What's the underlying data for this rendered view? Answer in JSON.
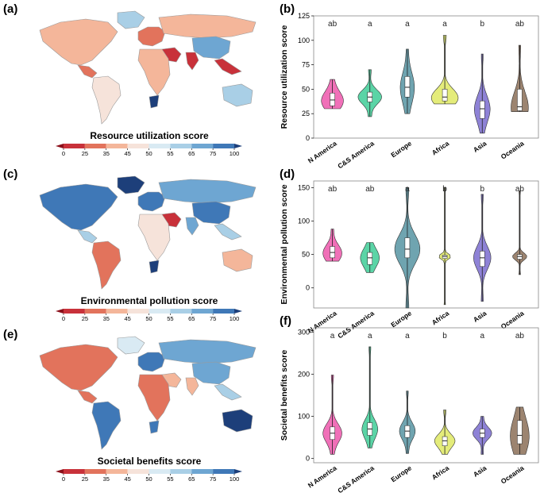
{
  "colors": {
    "scale": [
      "#8b0f1a",
      "#c8313a",
      "#e2735c",
      "#f4b69a",
      "#f6e3da",
      "#d9eaf3",
      "#a9cfe6",
      "#6ea6d2",
      "#3f78b7",
      "#1d3f7a"
    ],
    "groups": {
      "N America": "#f070b8",
      "C&S America": "#5bd4a6",
      "Europe": "#6fa4b0",
      "Africa": "#e4ec7a",
      "Asia": "#8e82d6",
      "Oceania": "#9c8470"
    }
  },
  "maps": [
    {
      "letter": "(a)",
      "title": "Resource utilization score",
      "colorbar_ticks": [
        "0",
        "25",
        "35",
        "45",
        "50",
        "55",
        "65",
        "75",
        "100"
      ],
      "regions": {
        "na": 3,
        "ca": 2,
        "sa": 4,
        "gr": 6,
        "eu": 2,
        "ru": 3,
        "af": 3,
        "me": 1,
        "in": 1,
        "ch": 7,
        "sea": 1,
        "au": 6,
        "saf": 9
      }
    },
    {
      "letter": "(c)",
      "title": "Environmental pollution score",
      "colorbar_ticks": [
        "0",
        "25",
        "35",
        "45",
        "50",
        "55",
        "65",
        "75",
        "100"
      ],
      "regions": {
        "na": 8,
        "ca": 6,
        "sa": 2,
        "gr": 9,
        "eu": 8,
        "ru": 7,
        "af": 4,
        "me": 1,
        "in": 7,
        "ch": 8,
        "sea": 6,
        "au": 3,
        "saf": 9
      }
    },
    {
      "letter": "(e)",
      "title": "Societal benefits score",
      "colorbar_ticks": [
        "0",
        "25",
        "35",
        "45",
        "50",
        "55",
        "65",
        "75",
        "100"
      ],
      "regions": {
        "na": 2,
        "ca": 2,
        "sa": 8,
        "gr": 5,
        "eu": 8,
        "ru": 7,
        "af": 2,
        "me": 3,
        "in": 3,
        "ch": 7,
        "sea": 6,
        "au": 9,
        "saf": 8
      }
    }
  ],
  "chart_data": [
    {
      "letter": "(b)",
      "type": "violin",
      "ylabel": "Resource utilization score",
      "ylim": [
        0,
        125
      ],
      "yticks": [
        0,
        25,
        50,
        75,
        100,
        125
      ],
      "categories": [
        "N America",
        "C&S America",
        "Europe",
        "Africa",
        "Asia",
        "Oceania"
      ],
      "significance": [
        "ab",
        "a",
        "a",
        "a",
        "b",
        "ab"
      ],
      "series": [
        {
          "name": "N America",
          "min": 30,
          "q1": 33,
          "median": 39,
          "q3": 46,
          "max": 60,
          "width": 0.7
        },
        {
          "name": "C&S America",
          "min": 22,
          "q1": 37,
          "median": 42,
          "q3": 47,
          "max": 70,
          "width": 0.75
        },
        {
          "name": "Europe",
          "min": 25,
          "q1": 42,
          "median": 52,
          "q3": 63,
          "max": 91,
          "width": 0.45
        },
        {
          "name": "Africa",
          "min": 35,
          "q1": 38,
          "median": 42,
          "q3": 50,
          "max": 105,
          "width": 0.85
        },
        {
          "name": "Asia",
          "min": 5,
          "q1": 20,
          "median": 30,
          "q3": 38,
          "max": 86,
          "width": 0.5
        },
        {
          "name": "Oceania",
          "min": 27,
          "q1": 28,
          "median": 32,
          "q3": 50,
          "max": 95,
          "width": 0.55
        }
      ]
    },
    {
      "letter": "(d)",
      "type": "violin",
      "ylabel": "Environmental pollution score",
      "ylim": [
        -30,
        160
      ],
      "yticks": [
        0,
        50,
        100,
        150
      ],
      "categories": [
        "N America",
        "C&S America",
        "Europe",
        "Africa",
        "Asia",
        "Oceania"
      ],
      "significance": [
        "ab",
        "ab",
        "a",
        "b",
        "b",
        "ab"
      ],
      "series": [
        {
          "name": "N America",
          "min": 40,
          "q1": 45,
          "median": 53,
          "q3": 62,
          "max": 88,
          "width": 0.6
        },
        {
          "name": "C&S America",
          "min": 23,
          "q1": 35,
          "median": 45,
          "q3": 53,
          "max": 68,
          "width": 0.6
        },
        {
          "name": "Europe",
          "min": -30,
          "q1": 45,
          "median": 58,
          "q3": 75,
          "max": 150,
          "width": 0.8
        },
        {
          "name": "Africa",
          "min": -25,
          "q1": 44,
          "median": 47,
          "q3": 49,
          "max": 150,
          "width": 0.35
        },
        {
          "name": "Asia",
          "min": -20,
          "q1": 32,
          "median": 45,
          "q3": 55,
          "max": 140,
          "width": 0.55
        },
        {
          "name": "Oceania",
          "min": 20,
          "q1": 43,
          "median": 47,
          "q3": 50,
          "max": 145,
          "width": 0.45
        }
      ]
    },
    {
      "letter": "(f)",
      "type": "violin",
      "ylabel": "Societal benefits score",
      "ylim": [
        -10,
        310
      ],
      "yticks": [
        0,
        100,
        200,
        300
      ],
      "categories": [
        "N America",
        "C&S America",
        "Europe",
        "Africa",
        "Asia",
        "Oceania"
      ],
      "significance": [
        "a",
        "a",
        "a",
        "b",
        "a",
        "ab"
      ],
      "series": [
        {
          "name": "N America",
          "min": 10,
          "q1": 45,
          "median": 60,
          "q3": 75,
          "max": 198,
          "width": 0.6
        },
        {
          "name": "C&S America",
          "min": 25,
          "q1": 55,
          "median": 70,
          "q3": 85,
          "max": 265,
          "width": 0.5
        },
        {
          "name": "Europe",
          "min": 12,
          "q1": 50,
          "median": 65,
          "q3": 78,
          "max": 160,
          "width": 0.5
        },
        {
          "name": "Africa",
          "min": 10,
          "q1": 30,
          "median": 42,
          "q3": 52,
          "max": 115,
          "width": 0.65
        },
        {
          "name": "Asia",
          "min": 10,
          "q1": 50,
          "median": 60,
          "q3": 70,
          "max": 100,
          "width": 0.6
        },
        {
          "name": "Oceania",
          "min": 10,
          "q1": 35,
          "median": 55,
          "q3": 90,
          "max": 122,
          "width": 0.6
        }
      ]
    }
  ]
}
